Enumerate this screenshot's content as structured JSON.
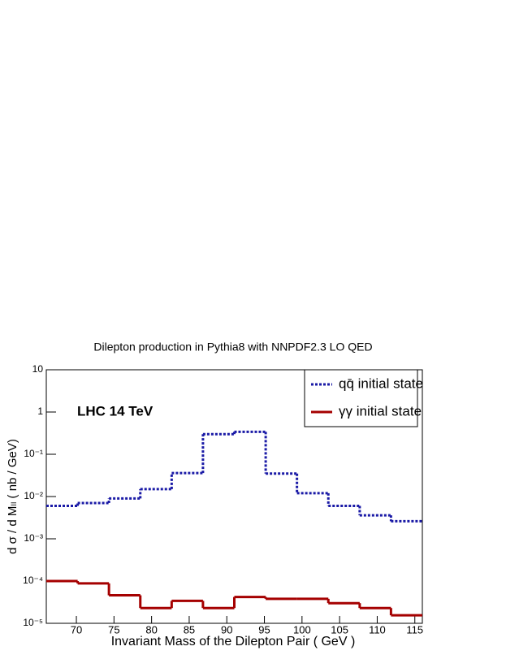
{
  "chart_data": {
    "type": "histogram",
    "title": "Dilepton production in Pythia8 with NNPDF2.3 LO QED",
    "xlabel": "Invariant Mass of the Dilepton Pair ( GeV )",
    "ylabel": "d σ / d Mₗₗ ( nb / GeV)",
    "annotation": "LHC 14 TeV",
    "bins": [
      66,
      70.17,
      74.33,
      78.5,
      82.67,
      86.83,
      91,
      95.17,
      99.33,
      103.5,
      107.67,
      111.83,
      116
    ],
    "series": [
      {
        "name": "qq̄ initial state",
        "color": "#1a1aa6",
        "dash": true,
        "values": [
          0.006,
          0.007,
          0.009,
          0.015,
          0.036,
          0.3,
          0.34,
          0.035,
          0.012,
          0.006,
          0.0036,
          0.0026
        ]
      },
      {
        "name": "γγ initial state",
        "color": "#a50000",
        "dash": false,
        "values": [
          0.0001,
          8.8e-05,
          4.6e-05,
          2.3e-05,
          3.4e-05,
          2.3e-05,
          4.2e-05,
          3.8e-05,
          3.8e-05,
          3e-05,
          2.3e-05,
          1.55e-05
        ]
      }
    ],
    "xlim": [
      66,
      116
    ],
    "ylim": [
      1e-05,
      10
    ],
    "log_y": true,
    "xticks": [
      70,
      75,
      80,
      85,
      90,
      95,
      100,
      105,
      110,
      115
    ],
    "yticks": [
      {
        "value": 1e-05,
        "label": "10⁻⁵"
      },
      {
        "value": 0.0001,
        "label": "10⁻⁴"
      },
      {
        "value": 0.001,
        "label": "10⁻³"
      },
      {
        "value": 0.01,
        "label": "10⁻²"
      },
      {
        "value": 0.1,
        "label": "10⁻¹"
      },
      1,
      10
    ],
    "legend": "upper right"
  }
}
